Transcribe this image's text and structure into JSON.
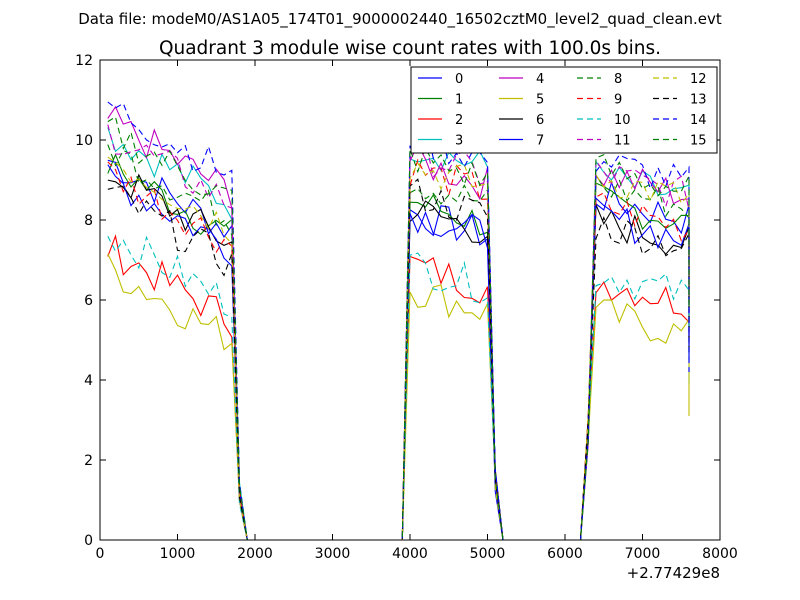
{
  "chart_data": {
    "type": "line",
    "supertitle": "Data file: modeM0/AS1A05_174T01_9000002440_16502cztM0_level2_quad_clean.evt",
    "title": "Quadrant 3 module wise count rates with 100.0s bins.",
    "xlabel": "",
    "ylabel": "",
    "x_offset_label": "+2.77429e8",
    "xlim": [
      0,
      8000
    ],
    "ylim": [
      0,
      12
    ],
    "xticks": [
      0,
      1000,
      2000,
      3000,
      4000,
      5000,
      6000,
      7000,
      8000
    ],
    "yticks": [
      0,
      2,
      4,
      6,
      8,
      10,
      12
    ],
    "grid": false,
    "legend_position": "top-right",
    "legend_columns": 4,
    "segments": [
      {
        "x_start": 100,
        "x_end": 1700,
        "step": 100
      },
      {
        "x_start": 4000,
        "x_end": 5000,
        "step": 100
      },
      {
        "x_start": 6400,
        "x_end": 7600,
        "step": 100
      }
    ],
    "gap_x": [
      1800,
      1900,
      2000,
      2500,
      3000,
      3500,
      3900,
      5100,
      5200,
      5500,
      6000,
      6200,
      6300
    ],
    "gap_y": [
      1.2,
      0,
      0,
      0,
      0,
      0,
      0,
      1.5,
      0,
      0,
      0,
      0,
      2.8
    ],
    "series": [
      {
        "name": "0",
        "color": "#0000ff",
        "dash": false,
        "seg_means": [
          8.6,
          7.9,
          8.3
        ],
        "last": 5.0
      },
      {
        "name": "1",
        "color": "#008000",
        "dash": false,
        "seg_means": [
          8.5,
          8.2,
          8.2
        ],
        "last": 5.5
      },
      {
        "name": "2",
        "color": "#ff0000",
        "dash": false,
        "seg_means": [
          6.4,
          6.6,
          6.2
        ],
        "last": 4.9
      },
      {
        "name": "3",
        "color": "#00bfbf",
        "dash": false,
        "seg_means": [
          9.3,
          9.6,
          8.8
        ],
        "last": 3.9
      },
      {
        "name": "4",
        "color": "#bf00bf",
        "dash": false,
        "seg_means": [
          9.6,
          9.2,
          8.9
        ],
        "last": 5.2
      },
      {
        "name": "5",
        "color": "#bfbf00",
        "dash": false,
        "seg_means": [
          5.9,
          6.0,
          5.4
        ],
        "last": 3.1
      },
      {
        "name": "6",
        "color": "#000000",
        "dash": false,
        "seg_means": [
          8.3,
          8.0,
          7.7
        ],
        "last": 4.7
      },
      {
        "name": "7",
        "color": "#0000ff",
        "dash": false,
        "seg_means": [
          8.2,
          7.9,
          7.8
        ],
        "last": 4.5
      },
      {
        "name": "8",
        "color": "#008000",
        "dash": true,
        "seg_means": [
          8.9,
          8.7,
          8.6
        ],
        "last": 5.9
      },
      {
        "name": "9",
        "color": "#ff0000",
        "dash": true,
        "seg_means": [
          8.3,
          9.0,
          8.1
        ],
        "last": 5.4
      },
      {
        "name": "10",
        "color": "#00bfbf",
        "dash": true,
        "seg_means": [
          6.8,
          6.6,
          6.4
        ],
        "last": 5.3
      },
      {
        "name": "11",
        "color": "#bf00bf",
        "dash": true,
        "seg_means": [
          9.3,
          9.4,
          8.9
        ],
        "last": 6.0
      },
      {
        "name": "12",
        "color": "#bfbf00",
        "dash": true,
        "seg_means": [
          8.7,
          9.1,
          8.8
        ],
        "last": 5.6
      },
      {
        "name": "13",
        "color": "#000000",
        "dash": true,
        "seg_means": [
          7.8,
          8.4,
          7.6
        ],
        "last": 4.6
      },
      {
        "name": "14",
        "color": "#0000ff",
        "dash": true,
        "seg_means": [
          10.0,
          9.8,
          9.2
        ],
        "last": 4.2
      },
      {
        "name": "15",
        "color": "#008000",
        "dash": true,
        "seg_means": [
          9.4,
          9.3,
          9.0
        ],
        "last": 5.8
      }
    ]
  }
}
